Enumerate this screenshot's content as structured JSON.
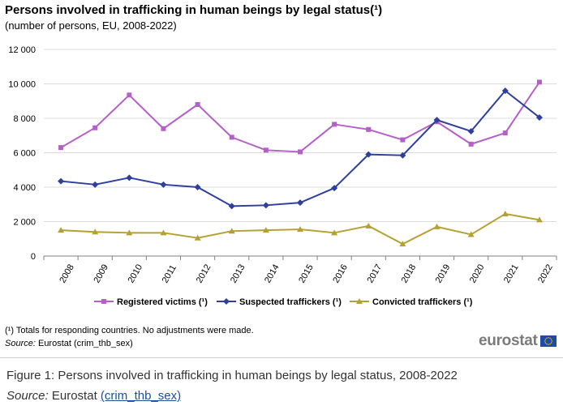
{
  "title": "Persons involved in trafficking in human beings by legal status(¹)",
  "subtitle": "(number  of persons, EU, 2008-2022)",
  "chart_data": {
    "type": "line",
    "title": "Persons involved in trafficking in human beings by legal status(¹)",
    "subtitle": "(number  of persons, EU, 2008-2022)",
    "categories": [
      "2008",
      "2009",
      "2010",
      "2011",
      "2012",
      "2013",
      "2014",
      "2015",
      "2016",
      "2017",
      "2018",
      "2019",
      "2020",
      "2021",
      "2022"
    ],
    "series": [
      {
        "name": "Registered victims (¹)",
        "color": "#b55fc8",
        "marker": "square",
        "values": [
          6300,
          7450,
          9350,
          7400,
          8800,
          6900,
          6150,
          6050,
          7650,
          7350,
          6750,
          7800,
          6500,
          7150,
          10100
        ]
      },
      {
        "name": "Suspected traffickers (¹)",
        "color": "#2e3f9c",
        "marker": "diamond",
        "values": [
          4350,
          4150,
          4550,
          4150,
          4000,
          2900,
          2950,
          3100,
          3950,
          5900,
          5850,
          7900,
          7250,
          9600,
          8050
        ]
      },
      {
        "name": "Convicted traffickers (¹)",
        "color": "#b5a032",
        "marker": "triangle",
        "values": [
          1500,
          1400,
          1350,
          1350,
          1050,
          1450,
          1500,
          1550,
          1350,
          1750,
          700,
          1700,
          1250,
          2450,
          2100
        ]
      }
    ],
    "ylim": [
      0,
      12000
    ],
    "yticks": [
      0,
      2000,
      4000,
      6000,
      8000,
      10000,
      12000
    ],
    "ytick_labels": [
      "0",
      "2 000",
      "4 000",
      "6 000",
      "8 000",
      "10 000",
      "12 000"
    ],
    "grid": true,
    "legend_position": "bottom"
  },
  "footnote": "(¹) Totals for responding countries. No adjustments  were made.",
  "source": {
    "label": "Source:",
    "text": " Eurostat (crim_thb_sex)"
  },
  "logo": {
    "text": "eurostat",
    "flag_color": "#1f4aa8",
    "star_color": "#ffd400"
  },
  "caption": "Figure 1: Persons involved in trafficking in human beings by legal status, 2008-2022",
  "caption_source": {
    "label": "Source:",
    "text": " Eurostat ",
    "link_text": "(crim_thb_sex)"
  }
}
